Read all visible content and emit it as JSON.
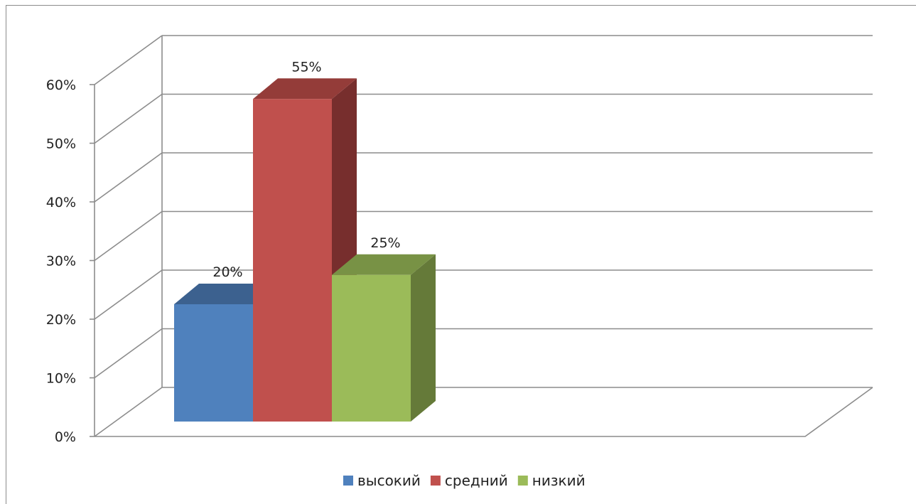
{
  "chart_data": {
    "type": "bar",
    "categories": [
      ""
    ],
    "series": [
      {
        "name": "высокий",
        "values": [
          20
        ],
        "label": "20%",
        "color": "#4f81bd",
        "top_color": "#3c618f",
        "side_color": "#3c618f"
      },
      {
        "name": "средний",
        "values": [
          55
        ],
        "label": "55%",
        "color": "#c0504d",
        "top_color": "#943c39",
        "side_color": "#772e2d"
      },
      {
        "name": "низкий",
        "values": [
          25
        ],
        "label": "25%",
        "color": "#9bbb59",
        "top_color": "#789245",
        "side_color": "#657a39"
      }
    ],
    "ylim": [
      0,
      60
    ],
    "yticks": [
      "0%",
      "10%",
      "20%",
      "30%",
      "40%",
      "50%",
      "60%"
    ],
    "grid": true,
    "legend_position": "bottom",
    "three_d": true
  }
}
